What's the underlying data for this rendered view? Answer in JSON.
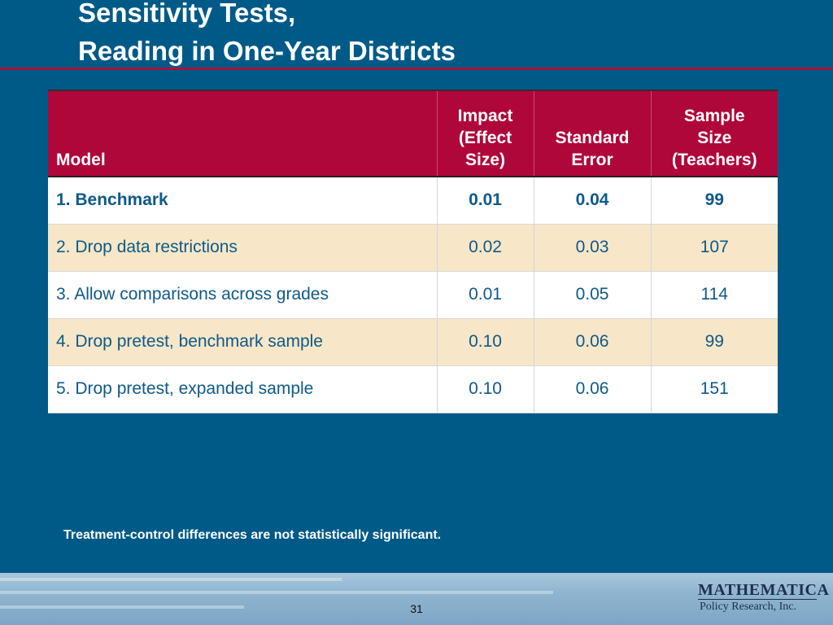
{
  "slide": {
    "title_line1": "Sensitivity Tests,",
    "title_line2": "Reading in One-Year Districts",
    "note": "Treatment-control differences are not statistically significant.",
    "page_number": "31",
    "colors": {
      "background": "#005a87",
      "title_rule": "#a8123e",
      "header_fill": "#b0073b",
      "row_alt_fill": "#f7e6c7",
      "body_text": "#0e5a8a"
    }
  },
  "table": {
    "headers": {
      "model": "Model",
      "impact_line1": "Impact",
      "impact_line2": "(Effect",
      "impact_line3": "Size)",
      "stderr_line1": "Standard",
      "stderr_line2": "Error",
      "sample_line1": "Sample",
      "sample_line2": "Size",
      "sample_line3": "(Teachers)"
    },
    "rows": [
      {
        "model": "1. Benchmark",
        "impact": "0.01",
        "stderr": "0.04",
        "sample": "99"
      },
      {
        "model": "2. Drop data restrictions",
        "impact": "0.02",
        "stderr": "0.03",
        "sample": "107"
      },
      {
        "model": "3. Allow comparisons across grades",
        "impact": "0.01",
        "stderr": "0.05",
        "sample": "114"
      },
      {
        "model": "4. Drop pretest, benchmark sample",
        "impact": "0.10",
        "stderr": "0.06",
        "sample": "99"
      },
      {
        "model": "5. Drop pretest, expanded sample",
        "impact": "0.10",
        "stderr": "0.06",
        "sample": "151"
      }
    ]
  },
  "logo": {
    "name_main": "MATHEMATICA",
    "name_sub": "Policy Research, Inc."
  }
}
